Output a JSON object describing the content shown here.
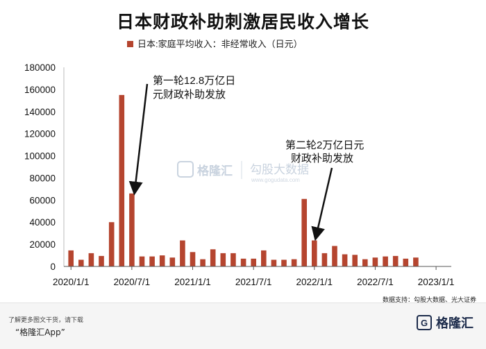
{
  "title": "日本财政补助刺激居民收入增长",
  "legend_label": "日本:家庭平均收入：非经常收入（日元）",
  "source": "数据支持：勾股大数据、光大证券",
  "watermark": {
    "brand": "格隆汇",
    "partner": "勾股大数据",
    "url": "www.gogudata.com"
  },
  "footer": {
    "note1": "了解更多图文干货，请下载",
    "note2": "“格隆汇App”",
    "logo_mark": "G",
    "logo_text": "格隆汇"
  },
  "colors": {
    "bar": "#b5452f",
    "axis": "#555555",
    "text": "#111111"
  },
  "chart_data": {
    "type": "bar",
    "title": "日本财政补助刺激居民收入增长",
    "series": [
      {
        "name": "日本:家庭平均收入：非经常收入（日元）",
        "color": "#b5452f",
        "values": [
          14500,
          6000,
          12000,
          9500,
          40000,
          155000,
          66000,
          9000,
          9000,
          10000,
          8000,
          23500,
          13000,
          6500,
          15500,
          12000,
          12000,
          7000,
          7000,
          14500,
          6000,
          6000,
          6500,
          61000,
          23500,
          12000,
          18500,
          11000,
          10500,
          6500,
          8000,
          9000,
          9500,
          7000,
          8000
        ]
      }
    ],
    "x_ticks": [
      "2020/1/1",
      "2020/7/1",
      "2021/1/1",
      "2021/7/1",
      "2022/1/1",
      "2022/7/1",
      "2023/1/1"
    ],
    "x_tick_months": [
      0,
      6,
      12,
      18,
      24,
      30,
      36
    ],
    "x_range_months": [
      -0.7,
      37.5
    ],
    "ylim": [
      0,
      180000
    ],
    "y_ticks": [
      0,
      20000,
      40000,
      60000,
      80000,
      100000,
      120000,
      140000,
      160000,
      180000
    ],
    "annotations": [
      {
        "lines": [
          "第一轮12.8万亿日",
          "元财政补助发放"
        ],
        "month": 6
      },
      {
        "lines": [
          "第二轮2万亿日元",
          "财政补助发放"
        ],
        "month": 24
      }
    ]
  }
}
